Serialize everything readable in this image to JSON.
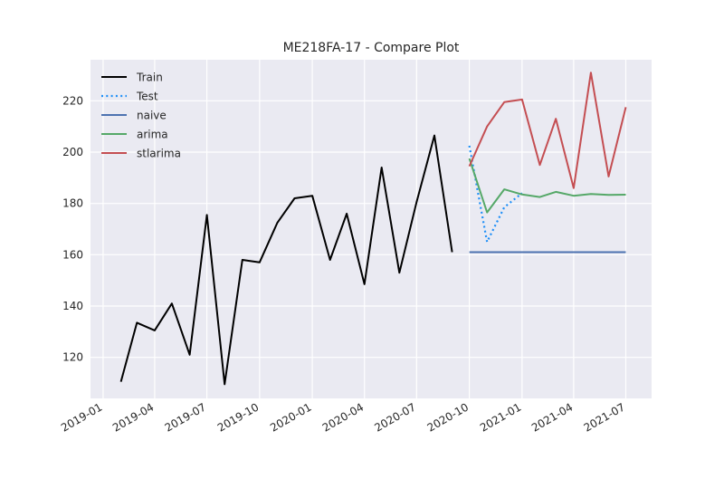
{
  "chart_data": {
    "type": "line",
    "title": "ME218FA-17 - Compare Plot",
    "xlabel": "",
    "ylabel": "",
    "grid": true,
    "legend_position": "top-left",
    "x_range": [
      "2018-12-10",
      "2021-08-15"
    ],
    "y_range": [
      104,
      236
    ],
    "y_ticks": [
      120,
      140,
      160,
      180,
      200,
      220
    ],
    "x_ticks": [
      "2019-01",
      "2019-04",
      "2019-07",
      "2019-10",
      "2020-01",
      "2020-04",
      "2020-07",
      "2020-10",
      "2021-01",
      "2021-04",
      "2021-07"
    ],
    "series": [
      {
        "name": "Train",
        "color": "#000000",
        "style": "solid",
        "points": [
          [
            "2019-02-01",
            110.5
          ],
          [
            "2019-03-01",
            133.5
          ],
          [
            "2019-04-01",
            130.5
          ],
          [
            "2019-05-01",
            141.0
          ],
          [
            "2019-06-01",
            121.0
          ],
          [
            "2019-07-01",
            175.5
          ],
          [
            "2019-08-01",
            109.5
          ],
          [
            "2019-09-01",
            158.0
          ],
          [
            "2019-10-01",
            157.0
          ],
          [
            "2019-11-01",
            172.5
          ],
          [
            "2019-12-01",
            182.0
          ],
          [
            "2020-01-01",
            183.0
          ],
          [
            "2020-02-01",
            158.0
          ],
          [
            "2020-03-01",
            176.0
          ],
          [
            "2020-04-01",
            148.5
          ],
          [
            "2020-05-01",
            194.0
          ],
          [
            "2020-06-01",
            153.0
          ],
          [
            "2020-07-01",
            180.5
          ],
          [
            "2020-08-01",
            206.5
          ],
          [
            "2020-09-01",
            161.0
          ]
        ]
      },
      {
        "name": "Test",
        "color": "#1f8ff7",
        "style": "dotted",
        "points": [
          [
            "2020-10-01",
            202.5
          ],
          [
            "2020-11-01",
            165.0
          ],
          [
            "2020-12-01",
            178.5
          ],
          [
            "2021-01-01",
            184.0
          ]
        ]
      },
      {
        "name": "naive",
        "color": "#4c72b0",
        "style": "solid",
        "points": [
          [
            "2020-10-01",
            161.0
          ],
          [
            "2021-07-01",
            161.0
          ]
        ]
      },
      {
        "name": "arima",
        "color": "#55a868",
        "style": "solid",
        "points": [
          [
            "2020-10-01",
            197.5
          ],
          [
            "2020-11-01",
            176.5
          ],
          [
            "2020-12-01",
            185.5
          ],
          [
            "2021-01-01",
            183.5
          ],
          [
            "2021-02-01",
            182.5
          ],
          [
            "2021-03-01",
            184.5
          ],
          [
            "2021-04-01",
            183.0
          ],
          [
            "2021-05-01",
            183.7
          ],
          [
            "2021-06-01",
            183.3
          ],
          [
            "2021-07-01",
            183.4
          ]
        ]
      },
      {
        "name": "stlarima",
        "color": "#c44e52",
        "style": "solid",
        "points": [
          [
            "2020-10-01",
            194.5
          ],
          [
            "2020-11-01",
            210.0
          ],
          [
            "2020-12-01",
            219.5
          ],
          [
            "2021-01-01",
            220.5
          ],
          [
            "2021-02-01",
            195.0
          ],
          [
            "2021-03-01",
            213.0
          ],
          [
            "2021-04-01",
            186.0
          ],
          [
            "2021-05-01",
            231.0
          ],
          [
            "2021-06-01",
            190.5
          ],
          [
            "2021-07-01",
            217.5
          ]
        ]
      }
    ]
  }
}
